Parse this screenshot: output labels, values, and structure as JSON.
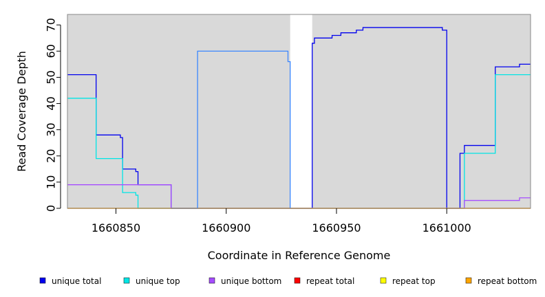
{
  "chart_data": {
    "type": "line",
    "xlabel": "Coordinate in Reference Genome",
    "ylabel": "Read Coverage Depth",
    "xlim": [
      1660828,
      1661038
    ],
    "ylim": [
      0,
      74
    ],
    "x_ticks": [
      1660850,
      1660900,
      1660950,
      1661000
    ],
    "y_ticks": [
      0,
      10,
      20,
      30,
      40,
      50,
      60,
      70
    ],
    "grid": false,
    "background": "#d9d9d9",
    "legend_position": "bottom",
    "gap_regions": [
      [
        1660929,
        1660939
      ]
    ],
    "series": [
      {
        "name": "unique total",
        "color": "#0000ee",
        "points": [
          [
            1660828,
            51
          ],
          [
            1660841,
            51
          ],
          [
            1660841,
            28
          ],
          [
            1660852,
            28
          ],
          [
            1660852,
            27
          ],
          [
            1660853,
            27
          ],
          [
            1660853,
            15
          ],
          [
            1660859,
            15
          ],
          [
            1660859,
            14
          ],
          [
            1660860,
            14
          ],
          [
            1660860,
            9
          ],
          [
            1660875,
            9
          ],
          [
            1660875,
            0
          ],
          [
            1660929,
            0
          ],
          [
            1660939,
            0
          ],
          [
            1660939,
            63
          ],
          [
            1660940,
            63
          ],
          [
            1660940,
            65
          ],
          [
            1660948,
            65
          ],
          [
            1660948,
            66
          ],
          [
            1660952,
            66
          ],
          [
            1660952,
            67
          ],
          [
            1660959,
            67
          ],
          [
            1660959,
            68
          ],
          [
            1660962,
            68
          ],
          [
            1660962,
            69
          ],
          [
            1660998,
            69
          ],
          [
            1660998,
            68
          ],
          [
            1661000,
            68
          ],
          [
            1661000,
            0
          ],
          [
            1661006,
            0
          ],
          [
            1661006,
            21
          ],
          [
            1661008,
            21
          ],
          [
            1661008,
            24
          ],
          [
            1661022,
            24
          ],
          [
            1661022,
            54
          ],
          [
            1661033,
            54
          ],
          [
            1661033,
            55
          ],
          [
            1661038,
            55
          ]
        ]
      },
      {
        "name": "unique top",
        "color": "#00e5e5",
        "points": [
          [
            1660828,
            42
          ],
          [
            1660841,
            42
          ],
          [
            1660841,
            19
          ],
          [
            1660853,
            19
          ],
          [
            1660853,
            6
          ],
          [
            1660859,
            6
          ],
          [
            1660859,
            5
          ],
          [
            1660860,
            5
          ],
          [
            1660860,
            0
          ],
          [
            1661008,
            0
          ],
          [
            1661008,
            21
          ],
          [
            1661022,
            21
          ],
          [
            1661022,
            51
          ],
          [
            1661038,
            51
          ]
        ]
      },
      {
        "name": "unique bottom",
        "color": "#a64dff",
        "points": [
          [
            1660828,
            9
          ],
          [
            1660875,
            9
          ],
          [
            1660875,
            0
          ],
          [
            1661008,
            0
          ],
          [
            1661008,
            3
          ],
          [
            1661033,
            3
          ],
          [
            1661033,
            4
          ],
          [
            1661038,
            4
          ]
        ]
      },
      {
        "name": "repeat total",
        "color": "#ff0000",
        "points": [
          [
            1660828,
            0
          ],
          [
            1661038,
            0
          ]
        ]
      },
      {
        "name": "repeat top",
        "color": "#ffff00",
        "points": [
          [
            1660828,
            0
          ],
          [
            1661038,
            0
          ]
        ]
      },
      {
        "name": "repeat bottom",
        "color": "#ffa500",
        "points": [
          [
            1660828,
            0
          ],
          [
            1661038,
            0
          ]
        ]
      },
      {
        "name": "",
        "color": "#3a86ff",
        "points": [
          [
            1660875,
            0
          ],
          [
            1660887,
            0
          ],
          [
            1660887,
            60
          ],
          [
            1660928,
            60
          ],
          [
            1660928,
            56
          ],
          [
            1660929,
            56
          ],
          [
            1660929,
            0
          ]
        ]
      }
    ]
  }
}
